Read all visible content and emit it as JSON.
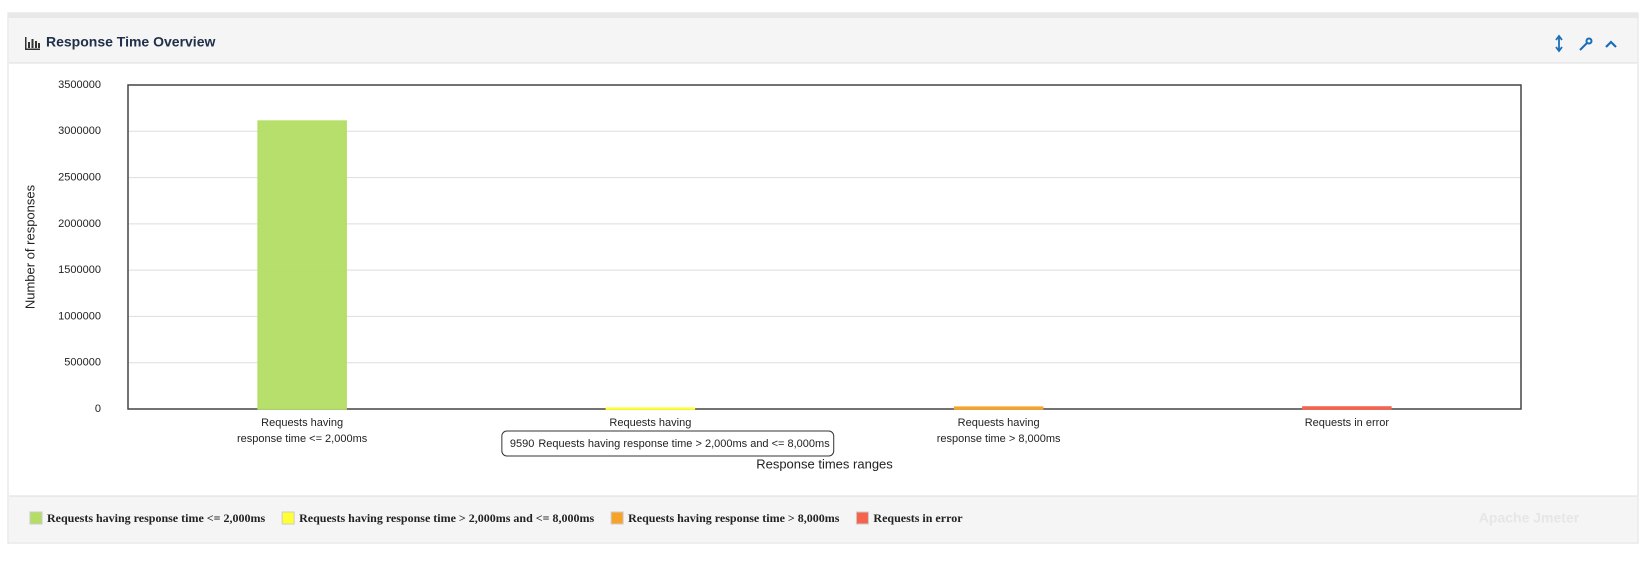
{
  "panel_title": "Response Time Overview",
  "watermark": "Apache Jmeter",
  "chart_data": {
    "type": "bar",
    "y_label": "Number of responses",
    "x_label": "Response times ranges",
    "categories": [
      [
        "Requests having",
        "response time <= 2,000ms"
      ],
      [
        "Requests having",
        "response time > 2,000ms and <= 8,000ms"
      ],
      [
        "Requests having",
        "response time > 8,000ms"
      ],
      [
        "Requests in error"
      ]
    ],
    "series": [
      {
        "name": "Requests having response time <= 2,000ms",
        "color": "#b3dd63",
        "values": [
          3110000,
          null,
          null,
          null
        ]
      },
      {
        "name": "Requests having response time > 2,000ms and <= 8,000ms",
        "color": "#ffff33",
        "values": [
          null,
          9590,
          null,
          null
        ]
      },
      {
        "name": "Requests having response time > 8,000ms",
        "color": "#f7a228",
        "values": [
          null,
          null,
          20000,
          null
        ]
      },
      {
        "name": "Requests in error",
        "color": "#f5624d",
        "values": [
          null,
          null,
          null,
          22000
        ]
      }
    ],
    "ylim": [
      0,
      3500000
    ],
    "yticks": [
      0,
      500000,
      1000000,
      1500000,
      2000000,
      2500000,
      3000000,
      3500000
    ],
    "grid": true,
    "tooltip_series": 1
  }
}
